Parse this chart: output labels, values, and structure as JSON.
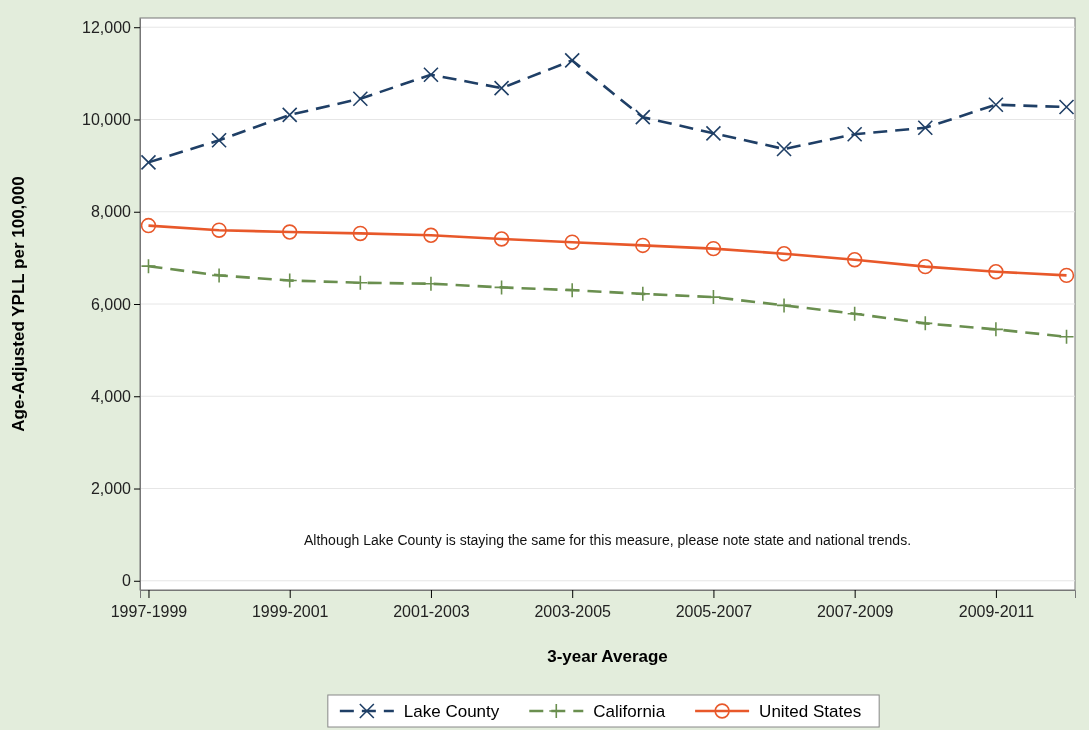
{
  "chart_data": {
    "type": "line",
    "xlabel": "3-year Average",
    "ylabel": "Age-Adjusted YPLL per 100,000",
    "categories": [
      "1997-1999",
      null,
      "1999-2001",
      null,
      "2001-2003",
      null,
      "2003-2005",
      null,
      "2005-2007",
      null,
      "2007-2009",
      null,
      "2009-2011",
      null
    ],
    "series": [
      {
        "name": "Lake County",
        "color": "#1f3f66",
        "marker": "cross",
        "line_style": "dashed",
        "values": [
          9070,
          9550,
          10100,
          10450,
          10970,
          10680,
          11280,
          10050,
          9700,
          9360,
          9680,
          9820,
          10320,
          10270
        ]
      },
      {
        "name": "California",
        "color": "#6a8f4f",
        "marker": "plus",
        "line_style": "dashed",
        "values": [
          6820,
          6620,
          6510,
          6460,
          6440,
          6360,
          6300,
          6220,
          6150,
          5970,
          5790,
          5580,
          5450,
          5290
        ]
      },
      {
        "name": "United States",
        "color": "#e8582a",
        "marker": "circle",
        "line_style": "solid",
        "values": [
          7700,
          7600,
          7560,
          7530,
          7490,
          7410,
          7340,
          7270,
          7200,
          7090,
          6960,
          6810,
          6700,
          6620
        ]
      }
    ],
    "ylim": [
      -200,
      12200
    ],
    "yticks": [
      0,
      {
        "value": 2000,
        "label": "2,000"
      },
      {
        "value": 4000,
        "label": "4,000"
      },
      {
        "value": 6000,
        "label": "6,000"
      },
      {
        "value": 8000,
        "label": "8,000"
      },
      {
        "value": 10000,
        "label": "10,000"
      },
      {
        "value": 12000,
        "label": "12,000"
      }
    ],
    "grid": "y",
    "legend": "bottom",
    "annotations": [
      "Although Lake County is staying the same for this measure, please note state and national trends."
    ]
  }
}
